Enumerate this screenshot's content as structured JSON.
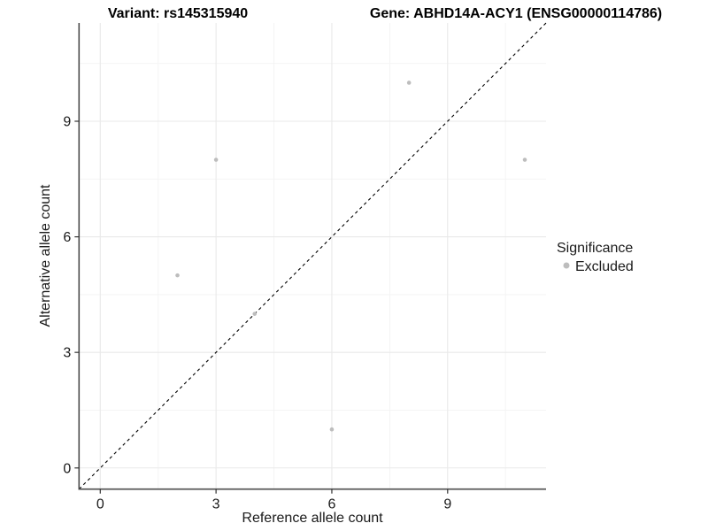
{
  "chart_data": {
    "type": "scatter",
    "title_left": "Variant: rs145315940",
    "title_right": "Gene: ABHD14A-ACY1 (ENSG00000114786)",
    "xlabel": "Reference allele count",
    "ylabel": "Alternative allele count",
    "xlim": [
      -0.55,
      11.55
    ],
    "ylim": [
      -0.55,
      11.55
    ],
    "xticks": [
      0,
      3,
      6,
      9
    ],
    "yticks": [
      0,
      3,
      6,
      9
    ],
    "minor_xticks": [
      1.5,
      4.5,
      7.5,
      10.5
    ],
    "minor_yticks": [
      1.5,
      4.5,
      7.5,
      10.5
    ],
    "grid": true,
    "series": [
      {
        "name": "Excluded",
        "color": "#bdbdbd",
        "points": [
          [
            2,
            5
          ],
          [
            3,
            8
          ],
          [
            4,
            4
          ],
          [
            6,
            1
          ],
          [
            8,
            10
          ],
          [
            11,
            8
          ]
        ]
      }
    ],
    "identity_line": {
      "slope": 1,
      "intercept": 0,
      "style": "dashed",
      "color": "#000000"
    },
    "legend": {
      "title": "Significance",
      "position": "right",
      "items": [
        {
          "label": "Excluded",
          "color": "#bdbdbd"
        }
      ]
    },
    "colors": {
      "background": "#ffffff",
      "major_grid": "#e9e9e9",
      "minor_grid": "#f3f3f3",
      "axis_line": "#4d4d4d",
      "tick_mark": "#333333",
      "point": "#bdbdbd"
    }
  }
}
